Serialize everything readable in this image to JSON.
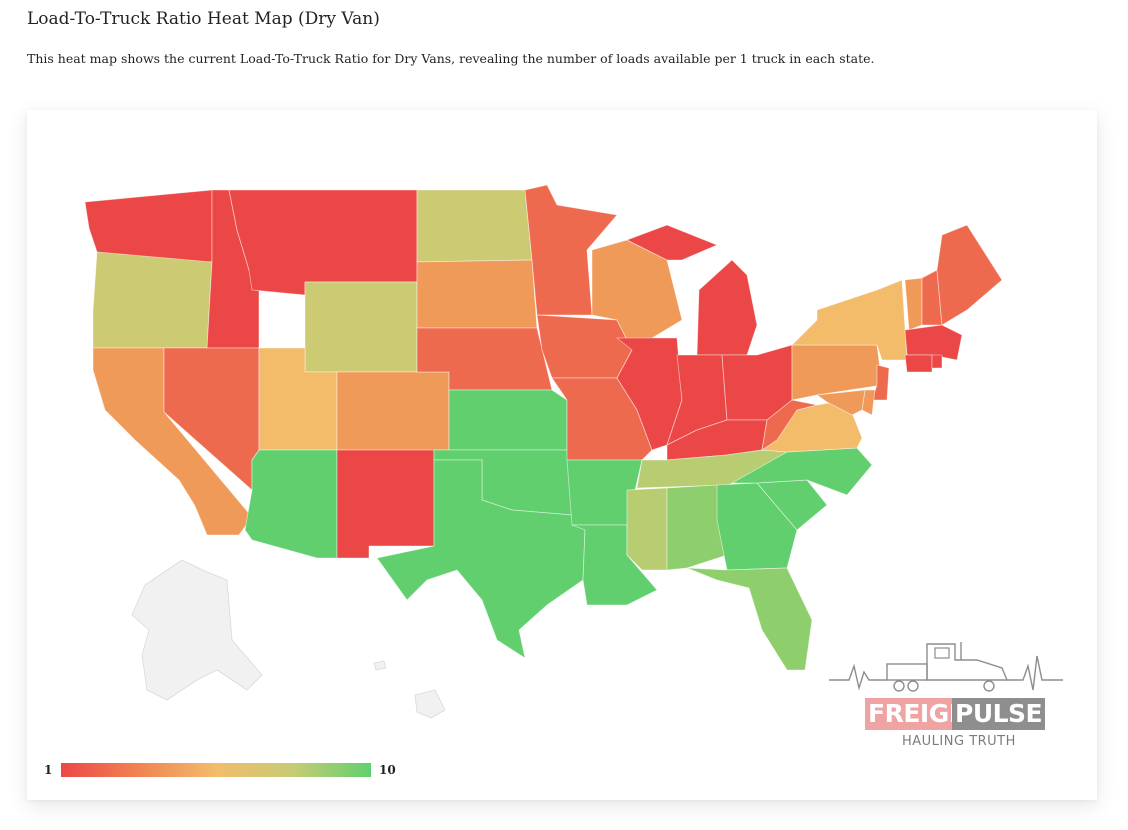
{
  "page": {
    "title": "Load-To-Truck Ratio Heat Map (Dry Van)",
    "description": "This heat map shows the current Load-To-Truck Ratio for Dry Vans, revealing the number of loads available per 1 truck in each state."
  },
  "legend": {
    "min_label": "1",
    "max_label": "10",
    "colors": [
      "#ec4747",
      "#f08452",
      "#f2bc6b",
      "#c5cc74",
      "#62cf6f"
    ]
  },
  "map": {
    "colors": {
      "red": "#ec4747",
      "red_orange": "#ee6a4e",
      "orange": "#f09a5a",
      "light_orange": "#f2bc6b",
      "olive": "#ccca72",
      "yellow_green": "#b8cc72",
      "light_green": "#8ece6c",
      "green": "#62cf6f",
      "gray": "#f1f1f1"
    }
  },
  "logo": {
    "word1": "FREIGHT",
    "word2": "PULSE",
    "tagline": "HAULING TRUTH"
  }
}
